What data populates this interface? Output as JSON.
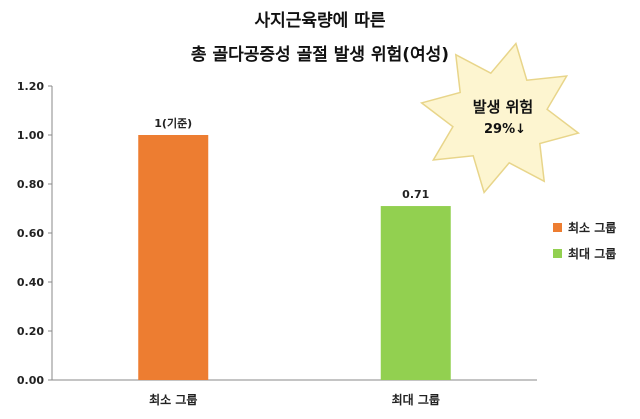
{
  "title_line1": "사지근육량에 따른",
  "title_line2": "총 골다공증성 골절 발생 위험(여성)",
  "callout": {
    "line1": "발생 위험",
    "line2": "29%↓",
    "fill_color": "#fdf5d0",
    "stroke_color": "#e8d58a"
  },
  "chart_data": {
    "type": "bar",
    "categories": [
      "최소 그룹",
      "최대 그룹"
    ],
    "values": [
      1.0,
      0.71
    ],
    "data_labels": [
      "1(기준)",
      "0.71"
    ],
    "colors": [
      "#ed7d31",
      "#92d050"
    ],
    "ylim": [
      0,
      1.2
    ],
    "yticks": [
      "0.00",
      "0.20",
      "0.40",
      "0.60",
      "0.80",
      "1.00",
      "1.20"
    ],
    "legend": [
      {
        "name": "최소 그룹",
        "color": "#ed7d31"
      },
      {
        "name": "최대 그룹",
        "color": "#92d050"
      }
    ],
    "legend_position": "right",
    "grid": false
  }
}
